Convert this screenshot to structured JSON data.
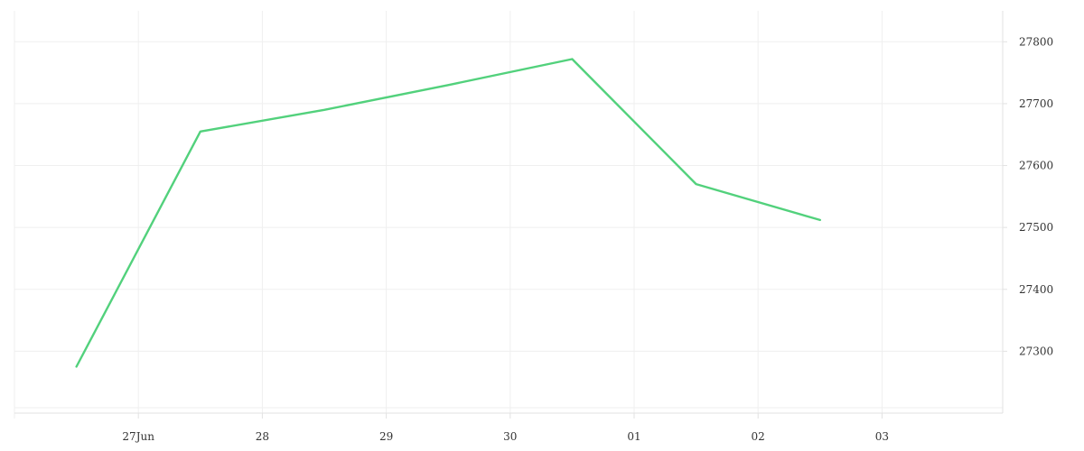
{
  "chart_data": {
    "type": "line",
    "x": [
      "2023-06-26 12:00",
      "2023-06-27 12:00",
      "2023-06-28 12:00",
      "2023-06-29 12:00",
      "2023-06-30 12:00",
      "2023-07-01 12:00",
      "2023-07-02 12:00"
    ],
    "series": [
      {
        "values": [
          27275,
          27655,
          27690,
          27730,
          27772,
          27570,
          27512
        ],
        "color": "#52d17c"
      }
    ],
    "x_ticks": [
      "27Jun",
      "28",
      "29",
      "30",
      "01",
      "02",
      "03"
    ],
    "y_ticks": [
      "27300",
      "27400",
      "27500",
      "27600",
      "27700",
      "27800"
    ],
    "ylim": [
      27200,
      27850
    ],
    "grid": true,
    "y_axis_side": "right",
    "title": "",
    "xlabel": "",
    "ylabel": ""
  }
}
